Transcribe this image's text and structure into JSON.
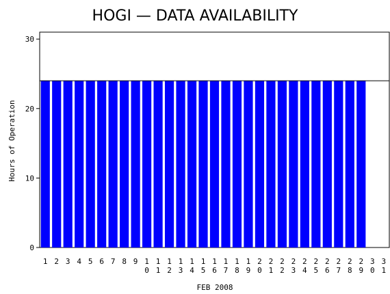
{
  "chart_data": {
    "type": "bar",
    "title": "HOGI — DATA AVAILABILITY",
    "xlabel": "FEB 2008",
    "ylabel": "Hours of Operation",
    "categories": [
      "1",
      "2",
      "3",
      "4",
      "5",
      "6",
      "7",
      "8",
      "9",
      "10",
      "11",
      "12",
      "13",
      "14",
      "15",
      "16",
      "17",
      "18",
      "19",
      "20",
      "21",
      "22",
      "23",
      "24",
      "25",
      "26",
      "27",
      "28",
      "29",
      "30",
      "31"
    ],
    "values": [
      24,
      24,
      24,
      24,
      24,
      24,
      24,
      24,
      24,
      24,
      24,
      24,
      24,
      24,
      24,
      24,
      24,
      24,
      24,
      24,
      24,
      24,
      24,
      24,
      24,
      24,
      24,
      24,
      24,
      null,
      null
    ],
    "color": "#0000ff",
    "reference_line": 24,
    "ylim": [
      0,
      31
    ],
    "yticks": [
      0,
      10,
      20,
      30
    ]
  }
}
